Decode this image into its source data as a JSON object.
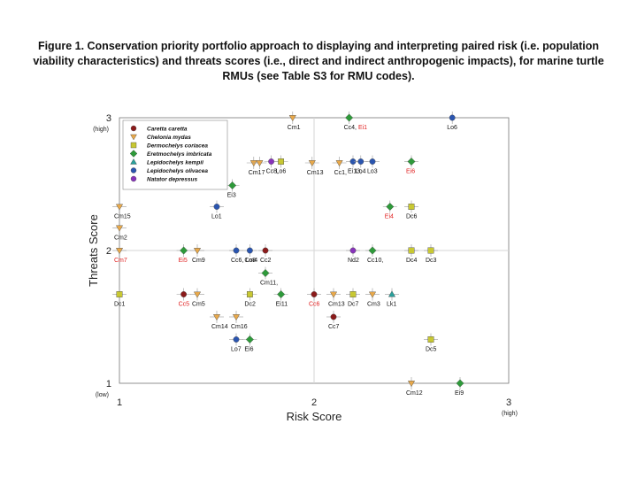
{
  "caption": "Figure 1. Conservation priority portfolio approach to displaying and interpreting paired risk (i.e. population viability characteristics) and threats scores (i.e., direct and indirect anthropogenic impacts), for marine turtle RMUs (see Table S3 for RMU codes).",
  "chart_data": {
    "type": "scatter",
    "xlabel": "Risk Score",
    "ylabel": "Threats Score",
    "xlim": [
      1,
      3
    ],
    "ylim": [
      1,
      3
    ],
    "x_ticks": [
      {
        "value": 1,
        "label": "1",
        "sub": ""
      },
      {
        "value": 2,
        "label": "2",
        "sub": ""
      },
      {
        "value": 3,
        "label": "3",
        "sub": "(high)"
      }
    ],
    "y_ticks": [
      {
        "value": 1,
        "label": "1",
        "sub": "(low)"
      },
      {
        "value": 2,
        "label": "2",
        "sub": ""
      },
      {
        "value": 3,
        "label": "3",
        "sub": "(high)"
      }
    ],
    "grid": false,
    "midlines": [
      2,
      2
    ],
    "legend_position": "top-left",
    "series": [
      {
        "name": "Caretta caretta",
        "color": "#8b1a1a",
        "marker": "circle"
      },
      {
        "name": "Chelonia mydas",
        "color": "#e9a94a",
        "marker": "triangle-down"
      },
      {
        "name": "Dermochelys coriacea",
        "color": "#c8c832",
        "marker": "square"
      },
      {
        "name": "Eretmochelys imbricata",
        "color": "#2e9a3a",
        "marker": "diamond"
      },
      {
        "name": "Lepidochelys kempii",
        "color": "#2aa19c",
        "marker": "triangle-up"
      },
      {
        "name": "Lepidochelys olivacea",
        "color": "#2a55b0",
        "marker": "circle"
      },
      {
        "name": "Natator depressus",
        "color": "#8833bb",
        "marker": "circle"
      }
    ],
    "points": [
      {
        "series": 1,
        "x": 1.89,
        "y": 3.0,
        "label": "Cm1"
      },
      {
        "series": 3,
        "x": 2.18,
        "y": 3.0,
        "label": "Cc4, ",
        "label_red": "Ei1"
      },
      {
        "series": 5,
        "x": 2.71,
        "y": 3.0,
        "label": "Lo6"
      },
      {
        "series": 1,
        "x": 1.69,
        "y": 2.66,
        "label": "Cm17"
      },
      {
        "series": 1,
        "x": 1.72,
        "y": 2.66,
        "label": ""
      },
      {
        "series": 6,
        "x": 1.78,
        "y": 2.67,
        "label": "Cc8,"
      },
      {
        "series": 2,
        "x": 1.83,
        "y": 2.67,
        "label": "Lo6"
      },
      {
        "series": 1,
        "x": 1.99,
        "y": 2.66,
        "label": "Cm13"
      },
      {
        "series": 1,
        "x": 2.13,
        "y": 2.66,
        "label": "Cc1,"
      },
      {
        "series": 5,
        "x": 2.2,
        "y": 2.67,
        "label": "Ei13,"
      },
      {
        "series": 5,
        "x": 2.24,
        "y": 2.67,
        "label": "Lo4"
      },
      {
        "series": 5,
        "x": 2.3,
        "y": 2.67,
        "label": "Lo3"
      },
      {
        "series": 3,
        "x": 2.5,
        "y": 2.67,
        "label": "",
        "label_red": "Ei6"
      },
      {
        "series": 3,
        "x": 1.58,
        "y": 2.49,
        "label": "Ei3"
      },
      {
        "series": 5,
        "x": 1.5,
        "y": 2.33,
        "label": "Lo1"
      },
      {
        "series": 3,
        "x": 2.39,
        "y": 2.33,
        "label": "",
        "label_red": "Ei4"
      },
      {
        "series": 2,
        "x": 2.5,
        "y": 2.33,
        "label": "Dc6"
      },
      {
        "series": 1,
        "x": 1.0,
        "y": 2.33,
        "label": "Cm15"
      },
      {
        "series": 1,
        "x": 1.0,
        "y": 2.17,
        "label": "Cm2"
      },
      {
        "series": 1,
        "x": 1.0,
        "y": 2.0,
        "label": "",
        "label_red": "Cm7"
      },
      {
        "series": 3,
        "x": 1.33,
        "y": 2.0,
        "label": "",
        "label_red": "Ei5"
      },
      {
        "series": 1,
        "x": 1.4,
        "y": 2.0,
        "label": "Cm9"
      },
      {
        "series": 5,
        "x": 1.6,
        "y": 2.0,
        "label": "Cc6, Lo8"
      },
      {
        "series": 5,
        "x": 1.67,
        "y": 2.0,
        "label": "Cm4"
      },
      {
        "series": 0,
        "x": 1.75,
        "y": 2.0,
        "label": "Cc2"
      },
      {
        "series": 6,
        "x": 2.2,
        "y": 2.0,
        "label": "Nd2"
      },
      {
        "series": 3,
        "x": 2.3,
        "y": 2.0,
        "label": "Cc10,"
      },
      {
        "series": 2,
        "x": 2.5,
        "y": 2.0,
        "label": "Dc4"
      },
      {
        "series": 2,
        "x": 2.6,
        "y": 2.0,
        "label": "Dc3"
      },
      {
        "series": 3,
        "x": 1.75,
        "y": 1.83,
        "label": "Cm11,"
      },
      {
        "series": 2,
        "x": 1.0,
        "y": 1.67,
        "label": "Dc1"
      },
      {
        "series": 0,
        "x": 1.33,
        "y": 1.67,
        "label": "",
        "label_red": "Cc5"
      },
      {
        "series": 1,
        "x": 1.4,
        "y": 1.67,
        "label": "Cm5"
      },
      {
        "series": 2,
        "x": 1.67,
        "y": 1.67,
        "label": "Dc2"
      },
      {
        "series": 3,
        "x": 1.83,
        "y": 1.67,
        "label": "Ei11"
      },
      {
        "series": 0,
        "x": 2.0,
        "y": 1.67,
        "label": "",
        "label_red": "Cc6"
      },
      {
        "series": 1,
        "x": 2.1,
        "y": 1.67,
        "label": "Cm13"
      },
      {
        "series": 2,
        "x": 2.2,
        "y": 1.67,
        "label": "Dc7"
      },
      {
        "series": 1,
        "x": 2.3,
        "y": 1.67,
        "label": "Cm3"
      },
      {
        "series": 4,
        "x": 2.4,
        "y": 1.67,
        "label": "Lk1"
      },
      {
        "series": 1,
        "x": 1.5,
        "y": 1.5,
        "label": "Cm14"
      },
      {
        "series": 1,
        "x": 1.6,
        "y": 1.5,
        "label": "Cm16"
      },
      {
        "series": 0,
        "x": 2.1,
        "y": 1.5,
        "label": "Cc7"
      },
      {
        "series": 5,
        "x": 1.6,
        "y": 1.33,
        "label": "Lo7"
      },
      {
        "series": 3,
        "x": 1.67,
        "y": 1.33,
        "label": "Ei6"
      },
      {
        "series": 2,
        "x": 2.6,
        "y": 1.33,
        "label": "Dc5"
      },
      {
        "series": 1,
        "x": 2.5,
        "y": 1.0,
        "label": "Cm12"
      },
      {
        "series": 3,
        "x": 2.75,
        "y": 1.0,
        "label": "Ei9"
      }
    ]
  }
}
